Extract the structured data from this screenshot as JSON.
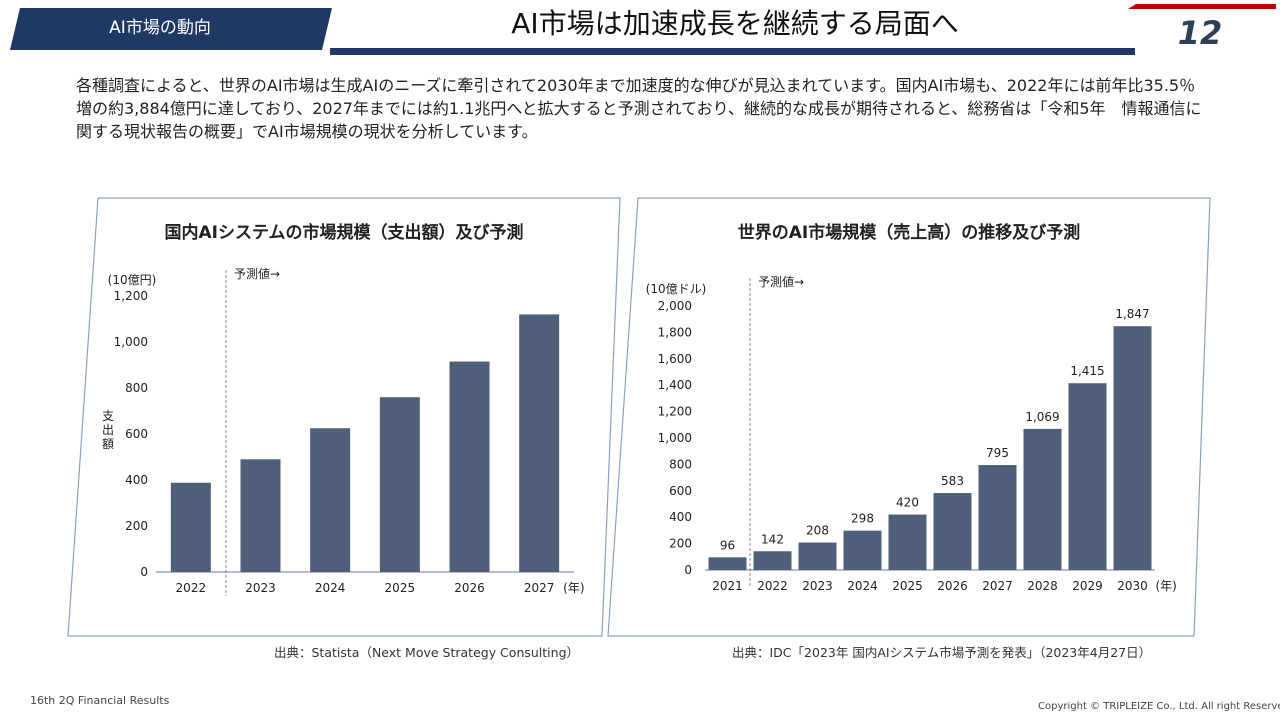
{
  "header": {
    "section_tab": "AI市場の動向",
    "title": "AI市場は加速成長を継続する局面へ",
    "page_number": "12"
  },
  "intro": "各種調査によると、世界のAI市場は生成AIのニーズに牽引されて2030年まで加速度的な伸びが見込まれています。国内AI市場も、2022年には前年比35.5％増の約3,884億円に達しており、2027年までには約1.1兆円へと拡大すると予測されており、継続的な成長が期待されると、総務省は「令和5年　情報通信に関する現状報告の概要」でAI市場規模の現状を分析しています。",
  "colors": {
    "bar": "#4f5f7a",
    "navy": "#1f3864",
    "red": "#c00000",
    "panel_border": "#8aa0c0"
  },
  "chart_data": [
    {
      "type": "bar",
      "title": "国内AIシステムの市場規模（支出額）及び予測",
      "unit_label": "(10億円)",
      "ylabel": "支出額",
      "forecast_label": "予測値→",
      "x_unit": "(年)",
      "categories": [
        "2022",
        "2023",
        "2024",
        "2025",
        "2026",
        "2027"
      ],
      "values": [
        388,
        490,
        625,
        760,
        915,
        1120
      ],
      "y_ticks": [
        "0",
        "200",
        "400",
        "600",
        "800",
        "1,000",
        "1,200"
      ],
      "ylim": [
        0,
        1200
      ],
      "grid": false,
      "source": "出典：Statista（Next Move Strategy Consulting）"
    },
    {
      "type": "bar",
      "title": "世界のAI市場規模（売上高）の推移及び予測",
      "unit_label": "(10億ドル)",
      "forecast_label": "予測値→",
      "x_unit": "(年)",
      "categories": [
        "2021",
        "2022",
        "2023",
        "2024",
        "2025",
        "2026",
        "2027",
        "2028",
        "2029",
        "2030"
      ],
      "values": [
        96,
        142,
        208,
        298,
        420,
        583,
        795,
        1069,
        1415,
        1847
      ],
      "data_labels": [
        "96",
        "142",
        "208",
        "298",
        "420",
        "583",
        "795",
        "1,069",
        "1,415",
        "1,847"
      ],
      "y_ticks": [
        "0",
        "200",
        "400",
        "600",
        "800",
        "1,000",
        "1,200",
        "1,400",
        "1,600",
        "1,800",
        "2,000"
      ],
      "ylim": [
        0,
        2000
      ],
      "grid": false,
      "source": "出典：IDC「2023年 国内AIシステム市場予測を発表」（2023年4月27日）"
    }
  ],
  "footer": {
    "left": "16th 2Q Financial Results",
    "right": "Copyright © TRIPLEIZE Co., Ltd.  All right Reserved"
  }
}
